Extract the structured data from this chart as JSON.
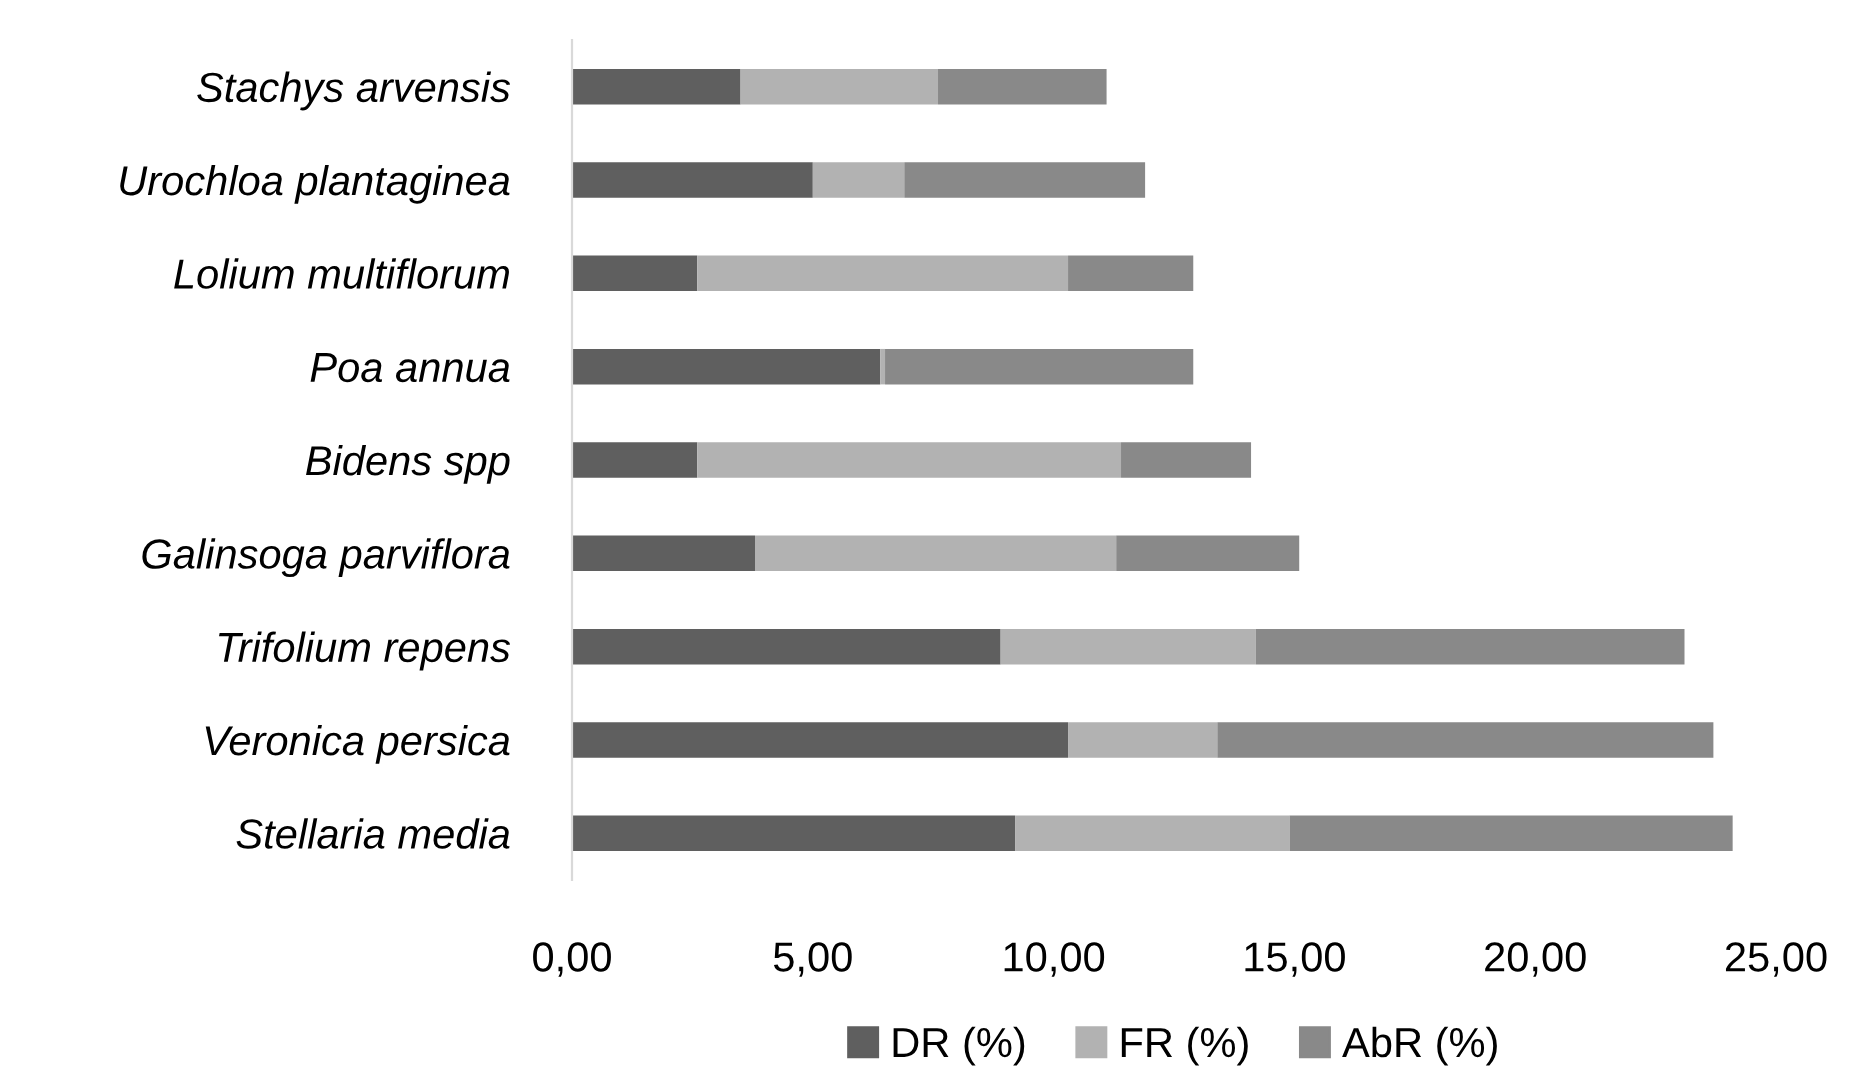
{
  "chart_data": {
    "type": "bar",
    "orientation": "horizontal",
    "stacked": true,
    "categories": [
      "Stachys arvensis",
      "Urochloa plantaginea",
      "Lolium multiflorum",
      "Poa annua",
      "Bidens spp",
      "Galinsoga parviflora",
      "Trifolium repens",
      "Veronica persica",
      "Stellaria media"
    ],
    "series": [
      {
        "name": "DR (%)",
        "color": "#5f5f5f",
        "values": [
          3.5,
          5.0,
          2.6,
          6.4,
          2.6,
          3.8,
          8.9,
          10.3,
          9.2
        ]
      },
      {
        "name": "FR (%)",
        "color": "#b2b2b2",
        "values": [
          4.1,
          1.9,
          7.7,
          0.1,
          8.8,
          7.5,
          5.3,
          3.1,
          5.7
        ]
      },
      {
        "name": "AbR (%)",
        "color": "#898989",
        "values": [
          3.5,
          5.0,
          2.6,
          6.4,
          2.7,
          3.8,
          8.9,
          10.3,
          9.2
        ]
      }
    ],
    "xlim": [
      0,
      25
    ],
    "xticks": [
      {
        "value": 0,
        "label": "0,00"
      },
      {
        "value": 5,
        "label": "5,00"
      },
      {
        "value": 10,
        "label": "10,00"
      },
      {
        "value": 15,
        "label": "15,00"
      },
      {
        "value": 20,
        "label": "20,00"
      },
      {
        "value": 25,
        "label": "25,00"
      }
    ],
    "grid": false,
    "legend": "bottom"
  }
}
